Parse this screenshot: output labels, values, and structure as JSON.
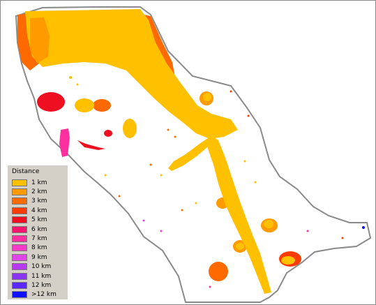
{
  "legend": {
    "title": "Distance",
    "items": [
      {
        "label": "1 km",
        "color": "#ffc000"
      },
      {
        "label": "2 km",
        "color": "#ff9a00"
      },
      {
        "label": "3 km",
        "color": "#ff6a00"
      },
      {
        "label": "4 km",
        "color": "#ff3c00"
      },
      {
        "label": "5 km",
        "color": "#ee1020"
      },
      {
        "label": "6 km",
        "color": "#f5156a"
      },
      {
        "label": "7 km",
        "color": "#ff2fa0"
      },
      {
        "label": "8 km",
        "color": "#f53ac8"
      },
      {
        "label": "9 km",
        "color": "#e045e8"
      },
      {
        "label": "10 km",
        "color": "#b83af0"
      },
      {
        "label": "11 km",
        "color": "#8a35f0"
      },
      {
        "label": "12 km",
        "color": "#5a28ff"
      },
      {
        "label": ">12 km",
        "color": "#1010ff"
      }
    ]
  }
}
